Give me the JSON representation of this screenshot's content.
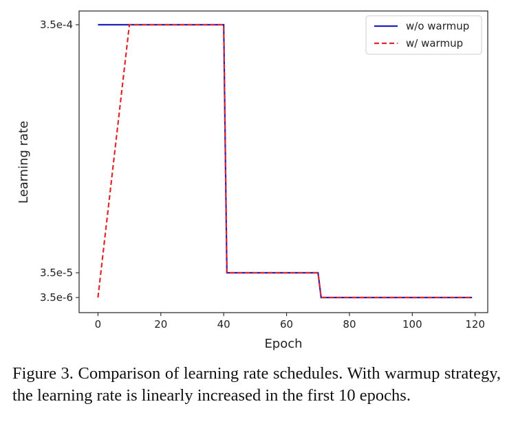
{
  "chart_data": {
    "type": "line",
    "xlabel": "Epoch",
    "ylabel": "Learning rate",
    "xlim": [
      -6,
      124
    ],
    "x_ticks": [
      0,
      20,
      40,
      60,
      80,
      100,
      120
    ],
    "x_tick_labels": [
      "0",
      "20",
      "40",
      "60",
      "80",
      "100",
      "120"
    ],
    "y_ticks": [
      0.00035,
      3.5e-05,
      3.5e-06
    ],
    "y_tick_labels": [
      "3.5e-4",
      "3.5e-5",
      "3.5e-6"
    ],
    "legend_position": "top-right",
    "series": [
      {
        "name": "w/o warmup",
        "color": "#1f1fbf",
        "style": "solid",
        "x": [
          0,
          40,
          41,
          70,
          71,
          119
        ],
        "y": [
          0.00035,
          0.00035,
          3.5e-05,
          3.5e-05,
          3.5e-06,
          3.5e-06
        ]
      },
      {
        "name": "w/ warmup",
        "color": "#e0262a",
        "style": "dashed",
        "x": [
          0,
          10,
          40,
          41,
          70,
          71,
          119
        ],
        "y": [
          3.5e-06,
          0.00035,
          0.00035,
          3.5e-05,
          3.5e-05,
          3.5e-06,
          3.5e-06
        ]
      }
    ]
  },
  "caption": "Figure 3. Comparison of learning rate schedules.  With warmup strategy, the learning rate is linearly increased in the first 10 epochs."
}
